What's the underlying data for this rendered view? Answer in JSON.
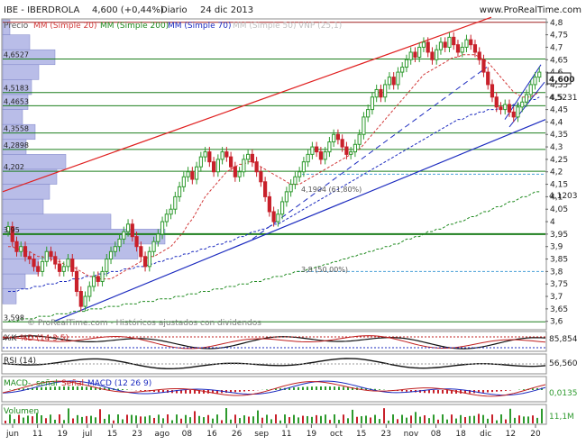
{
  "header": {
    "symbol": "IBE - IBERDROLA",
    "price": "4,600 (+0,44%)",
    "period": "Diario",
    "date": "24 dic 2013",
    "site": "www.ProRealTime.com"
  },
  "legend": {
    "price": "Precio",
    "ma20": "MM (Simple 20)",
    "ma200": "MM (Simple 200)",
    "ma70": "MM (Simple 70)",
    "ma50": "MM (Simple 50)",
    "vnp": "VNP (25,1)"
  },
  "watermark": "© ProRealTime.com - Históricos ajustados con dividendos",
  "colors": {
    "candle_up": "#2e9a2e",
    "candle_down": "#c8202a",
    "ma20": "#d23a3a",
    "ma200": "#1f8a1f",
    "ma70": "#1c2bbf",
    "trend_red": "#e02020",
    "trend_blue": "#1c2bbf",
    "hline_green": "#1e7f1e",
    "volume_profile": "#b9bde8"
  },
  "chart_data": {
    "type": "candlestick",
    "x_ticks": [
      "jun",
      "11",
      "19",
      "jul",
      "15",
      "23",
      "ago",
      "08",
      "16",
      "26",
      "sep",
      "11",
      "19",
      "oct",
      "15",
      "23",
      "nov",
      "08",
      "18",
      "dic",
      "12",
      "20"
    ],
    "y_ticks": [
      "4,8",
      "4,75",
      "4,7",
      "4,65",
      "4,6",
      "4,55",
      "4,5",
      "4,45",
      "4,4",
      "4,35",
      "4,3",
      "4,25",
      "4,2",
      "4,15",
      "4,1",
      "4,05",
      "4",
      "3,95",
      "3,9",
      "3,85",
      "3,8",
      "3,75",
      "3,7",
      "3,65",
      "3,6"
    ],
    "y_range": [
      3.57,
      4.81
    ],
    "last_price_label": "4,600",
    "right_labels": [
      "4,5231",
      "4,1203"
    ],
    "left_level_labels": [
      "4,6527",
      "4,5183",
      "4,4653",
      "4,3558",
      "4,2898",
      "4,202",
      "3,95",
      "3,598"
    ],
    "fibo_labels": [
      "4,1904 (61,80%)",
      "3,8 (50,00%)"
    ],
    "close": [
      3.98,
      3.92,
      3.88,
      3.9,
      3.86,
      3.85,
      3.82,
      3.8,
      3.84,
      3.88,
      3.86,
      3.83,
      3.8,
      3.82,
      3.85,
      3.8,
      3.72,
      3.66,
      3.7,
      3.74,
      3.78,
      3.76,
      3.8,
      3.85,
      3.88,
      3.9,
      3.93,
      3.96,
      3.99,
      3.94,
      3.9,
      3.86,
      3.82,
      3.88,
      3.92,
      3.95,
      4.0,
      4.03,
      4.05,
      4.1,
      4.14,
      4.18,
      4.2,
      4.17,
      4.22,
      4.26,
      4.28,
      4.24,
      4.2,
      4.25,
      4.28,
      4.26,
      4.22,
      4.18,
      4.2,
      4.25,
      4.27,
      4.24,
      4.2,
      4.16,
      4.1,
      4.04,
      4.0,
      4.03,
      4.08,
      4.12,
      4.15,
      4.18,
      4.2,
      4.24,
      4.27,
      4.3,
      4.28,
      4.25,
      4.28,
      4.32,
      4.35,
      4.33,
      4.3,
      4.27,
      4.28,
      4.31,
      4.35,
      4.42,
      4.45,
      4.5,
      4.53,
      4.5,
      4.55,
      4.58,
      4.55,
      4.6,
      4.62,
      4.65,
      4.68,
      4.66,
      4.7,
      4.72,
      4.68,
      4.65,
      4.69,
      4.72,
      4.7,
      4.74,
      4.71,
      4.68,
      4.7,
      4.73,
      4.71,
      4.68,
      4.65,
      4.6,
      4.55,
      4.5,
      4.46,
      4.45,
      4.47,
      4.44,
      4.42,
      4.46,
      4.48,
      4.51,
      4.55,
      4.58,
      4.6
    ],
    "ma20": [
      3.9,
      3.9,
      3.89,
      3.89,
      3.88,
      3.88,
      3.87,
      3.86,
      3.86,
      3.85,
      3.85,
      3.84,
      3.84,
      3.83,
      3.82,
      3.82,
      3.81,
      3.8,
      3.79,
      3.78,
      3.78,
      3.77,
      3.77,
      3.77,
      3.77,
      3.78,
      3.79,
      3.8,
      3.81,
      3.82,
      3.83,
      3.84,
      3.85,
      3.86,
      3.86,
      3.87,
      3.88,
      3.89,
      3.9,
      3.92,
      3.94,
      3.96,
      3.99,
      4.01,
      4.04,
      4.07,
      4.1,
      4.12,
      4.14,
      4.16,
      4.18,
      4.2,
      4.21,
      4.22,
      4.23,
      4.23,
      4.24,
      4.24,
      4.23,
      4.22,
      4.21,
      4.2,
      4.19,
      4.18,
      4.17,
      4.16,
      4.15,
      4.15,
      4.15,
      4.16,
      4.17,
      4.18,
      4.19,
      4.2,
      4.21,
      4.22,
      4.23,
      4.24,
      4.25,
      4.26,
      4.27,
      4.28,
      4.29,
      4.31,
      4.33,
      4.35,
      4.37,
      4.39,
      4.41,
      4.43,
      4.45,
      4.47,
      4.49,
      4.51,
      4.53,
      4.55,
      4.57,
      4.59,
      4.6,
      4.61,
      4.62,
      4.63,
      4.64,
      4.65,
      4.66,
      4.66,
      4.67,
      4.67,
      4.67,
      4.67,
      4.66,
      4.65,
      4.64,
      4.62,
      4.6,
      4.58,
      4.56,
      4.54,
      4.52,
      4.51,
      4.5,
      4.5,
      4.5,
      4.51,
      4.52
    ],
    "ma70": [
      3.72,
      3.72,
      3.72,
      3.73,
      3.73,
      3.73,
      3.74,
      3.74,
      3.74,
      3.75,
      3.75,
      3.75,
      3.76,
      3.76,
      3.76,
      3.77,
      3.77,
      3.77,
      3.78,
      3.78,
      3.78,
      3.79,
      3.79,
      3.79,
      3.8,
      3.8,
      3.8,
      3.81,
      3.81,
      3.81,
      3.82,
      3.82,
      3.82,
      3.83,
      3.83,
      3.84,
      3.84,
      3.85,
      3.85,
      3.86,
      3.86,
      3.87,
      3.87,
      3.88,
      3.88,
      3.89,
      3.89,
      3.9,
      3.9,
      3.91,
      3.91,
      3.92,
      3.92,
      3.93,
      3.94,
      3.94,
      3.95,
      3.96,
      3.96,
      3.97,
      3.97,
      3.98,
      3.99,
      3.99,
      4.0,
      4.01,
      4.02,
      4.03,
      4.04,
      4.05,
      4.06,
      4.07,
      4.08,
      4.09,
      4.1,
      4.11,
      4.12,
      4.13,
      4.14,
      4.15,
      4.16,
      4.17,
      4.18,
      4.19,
      4.2,
      4.21,
      4.22,
      4.23,
      4.24,
      4.25,
      4.26,
      4.27,
      4.28,
      4.29,
      4.3,
      4.31,
      4.32,
      4.33,
      4.34,
      4.35,
      4.36,
      4.37,
      4.38,
      4.39,
      4.4,
      4.41,
      4.41,
      4.42,
      4.43,
      4.43,
      4.44,
      4.44,
      4.45,
      4.45,
      4.45,
      4.46,
      4.46,
      4.46,
      4.47,
      4.47,
      4.48,
      4.48,
      4.49,
      4.49,
      4.5
    ],
    "ma200": [
      3.6,
      3.6,
      3.6,
      3.61,
      3.61,
      3.61,
      3.61,
      3.62,
      3.62,
      3.62,
      3.62,
      3.63,
      3.63,
      3.63,
      3.63,
      3.64,
      3.64,
      3.64,
      3.64,
      3.65,
      3.65,
      3.65,
      3.65,
      3.66,
      3.66,
      3.66,
      3.66,
      3.67,
      3.67,
      3.67,
      3.67,
      3.68,
      3.68,
      3.68,
      3.68,
      3.69,
      3.69,
      3.69,
      3.69,
      3.7,
      3.7,
      3.7,
      3.71,
      3.71,
      3.71,
      3.72,
      3.72,
      3.72,
      3.73,
      3.73,
      3.73,
      3.74,
      3.74,
      3.74,
      3.75,
      3.75,
      3.75,
      3.76,
      3.76,
      3.76,
      3.77,
      3.77,
      3.78,
      3.78,
      3.78,
      3.79,
      3.79,
      3.8,
      3.8,
      3.8,
      3.81,
      3.81,
      3.82,
      3.82,
      3.83,
      3.83,
      3.84,
      3.84,
      3.85,
      3.85,
      3.86,
      3.86,
      3.87,
      3.87,
      3.88,
      3.88,
      3.89,
      3.89,
      3.9,
      3.9,
      3.91,
      3.91,
      3.92,
      3.93,
      3.93,
      3.94,
      3.94,
      3.95,
      3.96,
      3.96,
      3.97,
      3.97,
      3.98,
      3.99,
      3.99,
      4.0,
      4.0,
      4.01,
      4.02,
      4.02,
      4.03,
      4.04,
      4.04,
      4.05,
      4.06,
      4.06,
      4.07,
      4.08,
      4.08,
      4.09,
      4.1,
      4.1,
      4.11,
      4.12,
      4.12
    ]
  },
  "indicators": {
    "k_label": "%K",
    "d_label": "%D (14 3 5)",
    "stoch_value": "85,854",
    "rsi_label": "RSI (14)",
    "rsi_value": "56,560",
    "macd_label": "MACD-, señal",
    "signal_label": "Señal",
    "macd_full_label": "MACD (12 26 9)",
    "macd_value": "0,0135",
    "volume_label": "Volumen",
    "volume_value": "11,1M"
  }
}
